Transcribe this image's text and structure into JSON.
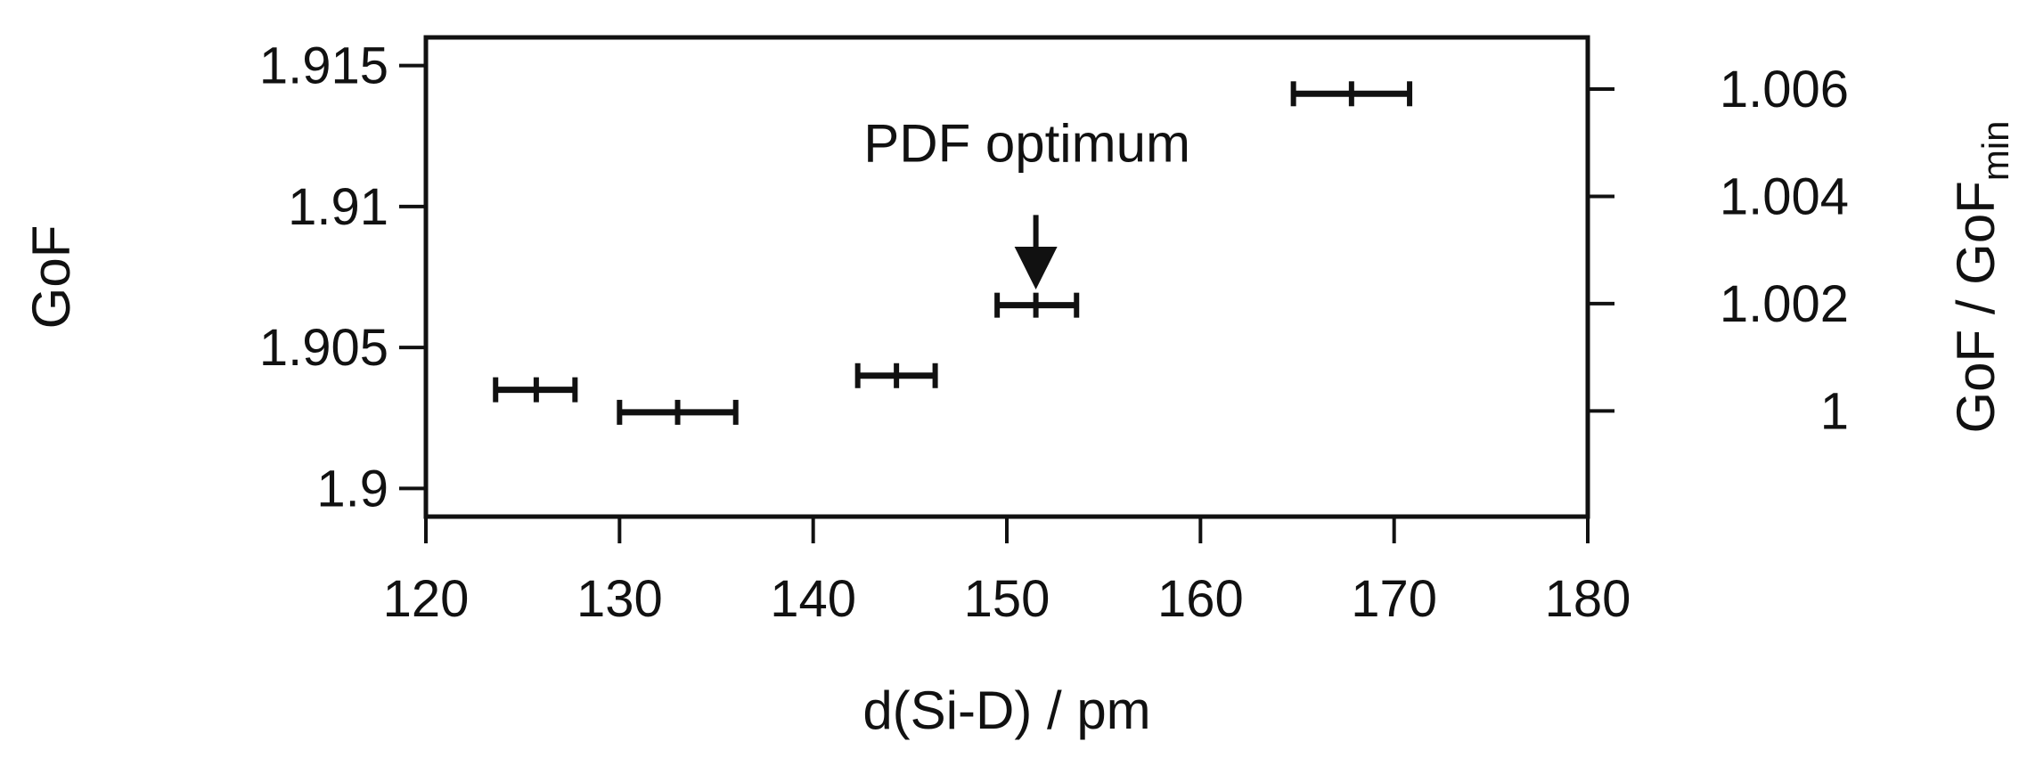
{
  "chart_data": {
    "type": "scatter",
    "xlabel": "d(Si-D) / pm",
    "ylabel": "GoF",
    "ylabel_right": "GoF / GoF",
    "ylabel_right_sub": "min",
    "xlim": [
      120,
      180
    ],
    "ylim": [
      1.899,
      1.916
    ],
    "x_ticks": [
      120,
      130,
      140,
      150,
      160,
      170,
      180
    ],
    "x_tick_labels": [
      "120",
      "130",
      "140",
      "150",
      "160",
      "170",
      "180"
    ],
    "y_ticks": [
      1.9,
      1.905,
      1.91,
      1.915
    ],
    "y_tick_labels": [
      "1.9",
      "1.905",
      "1.91",
      "1.915"
    ],
    "y_right_ticks": [
      1,
      1.002,
      1.004,
      1.006
    ],
    "y_right_tick_labels": [
      "1",
      "1.002",
      "1.004",
      "1.006"
    ],
    "y_right_base": 1.90275,
    "grid": false,
    "points": [
      {
        "x": 125.7,
        "xerr_low": 123.6,
        "xerr_high": 127.7,
        "y": 1.9035
      },
      {
        "x": 133.0,
        "xerr_low": 130.0,
        "xerr_high": 136.0,
        "y": 1.9027
      },
      {
        "x": 144.3,
        "xerr_low": 142.3,
        "xerr_high": 146.3,
        "y": 1.904
      },
      {
        "x": 151.5,
        "xerr_low": 149.5,
        "xerr_high": 153.6,
        "y": 1.9065
      },
      {
        "x": 167.8,
        "xerr_low": 164.8,
        "xerr_high": 170.8,
        "y": 1.914
      }
    ],
    "annotations": [
      {
        "text": "PDF optimum",
        "x": 151.5,
        "arrow_from_y": 1.9097,
        "arrow_to_y": 1.9075
      }
    ]
  }
}
